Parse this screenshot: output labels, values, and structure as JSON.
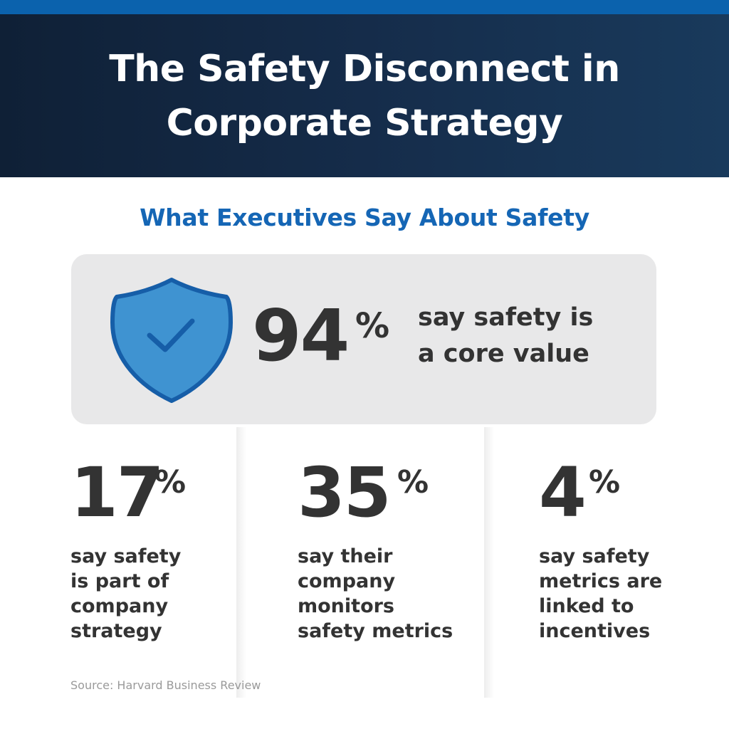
{
  "header": {
    "title_line1": "The Safety Disconnect in",
    "title_line2": "Corporate Strategy"
  },
  "subtitle": "What Executives Say About Safety",
  "hero": {
    "value": "94",
    "percent_sign": "%",
    "text_line1": "say safety is",
    "text_line2": "a core value",
    "icon": "shield-check-icon"
  },
  "stats": [
    {
      "value": "17",
      "percent_sign": "%",
      "lines": [
        "say safety",
        "is part of",
        "company",
        "strategy"
      ]
    },
    {
      "value": "35",
      "percent_sign": "%",
      "lines": [
        "say their",
        "company",
        "monitors",
        "safety metrics"
      ]
    },
    {
      "value": "4",
      "percent_sign": "%",
      "lines": [
        "say safety",
        "metrics are",
        "linked to",
        "incentives"
      ]
    }
  ],
  "source": "Source: Harvard Business Review",
  "colors": {
    "header_dark": "#0f2036",
    "accent_blue": "#1566b5",
    "shield_fill": "#3f93d1",
    "shield_stroke": "#165ea8",
    "card_gray": "#e8e8e9",
    "text_dark": "#333333"
  }
}
